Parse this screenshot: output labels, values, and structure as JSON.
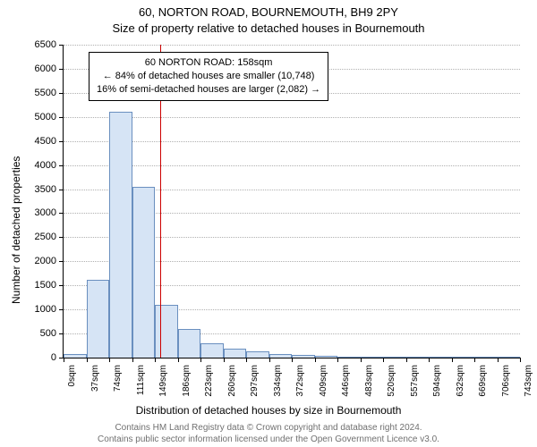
{
  "title_line1": "60, NORTON ROAD, BOURNEMOUTH, BH9 2PY",
  "title_line2": "Size of property relative to detached houses in Bournemouth",
  "chart": {
    "type": "histogram",
    "y_axis_label": "Number of detached properties",
    "x_axis_label": "Distribution of detached houses by size in Bournemouth",
    "ylim": [
      0,
      6500
    ],
    "ytick_step": 500,
    "x_tick_labels": [
      "0sqm",
      "37sqm",
      "74sqm",
      "111sqm",
      "149sqm",
      "186sqm",
      "223sqm",
      "260sqm",
      "297sqm",
      "334sqm",
      "372sqm",
      "409sqm",
      "446sqm",
      "483sqm",
      "520sqm",
      "557sqm",
      "594sqm",
      "632sqm",
      "669sqm",
      "706sqm",
      "743sqm"
    ],
    "bar_values": [
      70,
      1620,
      5100,
      3550,
      1100,
      600,
      300,
      190,
      130,
      70,
      50,
      40,
      20,
      0,
      0,
      0,
      0,
      0,
      0,
      0
    ],
    "bar_fill": "#d6e4f5",
    "bar_stroke": "#6a8fbf",
    "grid_color": "#b0b0b0",
    "background_color": "#ffffff",
    "reference_value_sqm": 158,
    "reference_x_range": [
      0,
      743
    ],
    "reference_line_color": "#cc0000",
    "annotation": {
      "line1": "60 NORTON ROAD: 158sqm",
      "line2": "← 84% of detached houses are smaller (10,748)",
      "line3": "16% of semi-detached houses are larger (2,082) →"
    },
    "title_fontsize": 13,
    "axis_label_fontsize": 12,
    "tick_fontsize": 11
  },
  "footer_line1": "Contains HM Land Registry data © Crown copyright and database right 2024.",
  "footer_line2": "Contains public sector information licensed under the Open Government Licence v3.0."
}
